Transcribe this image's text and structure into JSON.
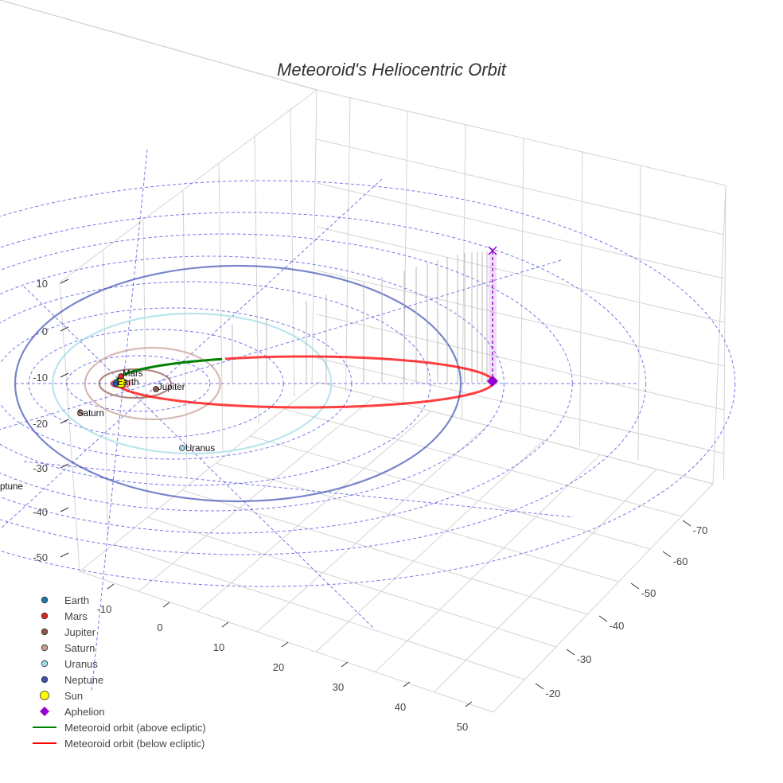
{
  "chart_data": {
    "type": "scatter",
    "title": "Meteoroid's Heliocentric Orbit",
    "xlabel": "",
    "ylabel": "",
    "zlabel": "",
    "x_ticks": [
      "-10",
      "0",
      "10",
      "20",
      "30",
      "40",
      "50"
    ],
    "y_ticks": [
      "-70",
      "-60",
      "-50",
      "-40",
      "-30",
      "-20"
    ],
    "z_ticks": [
      "10",
      "0",
      "-10",
      "-20",
      "-30",
      "-40",
      "-50"
    ],
    "legend_position": "bottom-left",
    "legend": [
      {
        "name": "Earth",
        "symbol": "circle",
        "color": "#1f77b4"
      },
      {
        "name": "Mars",
        "symbol": "circle",
        "color": "#d62728"
      },
      {
        "name": "Jupiter",
        "symbol": "circle",
        "color": "#8c564b"
      },
      {
        "name": "Saturn",
        "symbol": "circle",
        "color": "#c49c94"
      },
      {
        "name": "Uranus",
        "symbol": "circle",
        "color": "#9edae5"
      },
      {
        "name": "Neptune",
        "symbol": "circle",
        "color": "#3f51b5"
      },
      {
        "name": "Sun",
        "symbol": "circle",
        "color": "#ffff00"
      },
      {
        "name": "Aphelion",
        "symbol": "diamond",
        "color": "#9400d3"
      },
      {
        "name": "Meteoroid orbit (above ecliptic)",
        "symbol": "line",
        "color": "#008000"
      },
      {
        "name": "Meteoroid orbit (below ecliptic)",
        "symbol": "line",
        "color": "#ff0000"
      }
    ],
    "planet_labels": [
      {
        "name": "Mars"
      },
      {
        "name": "Earth"
      },
      {
        "name": "Jupiter"
      },
      {
        "name": "Saturn"
      },
      {
        "name": "Uranus"
      },
      {
        "name": "Neptune",
        "shown": "ptune"
      }
    ],
    "grid": true
  }
}
